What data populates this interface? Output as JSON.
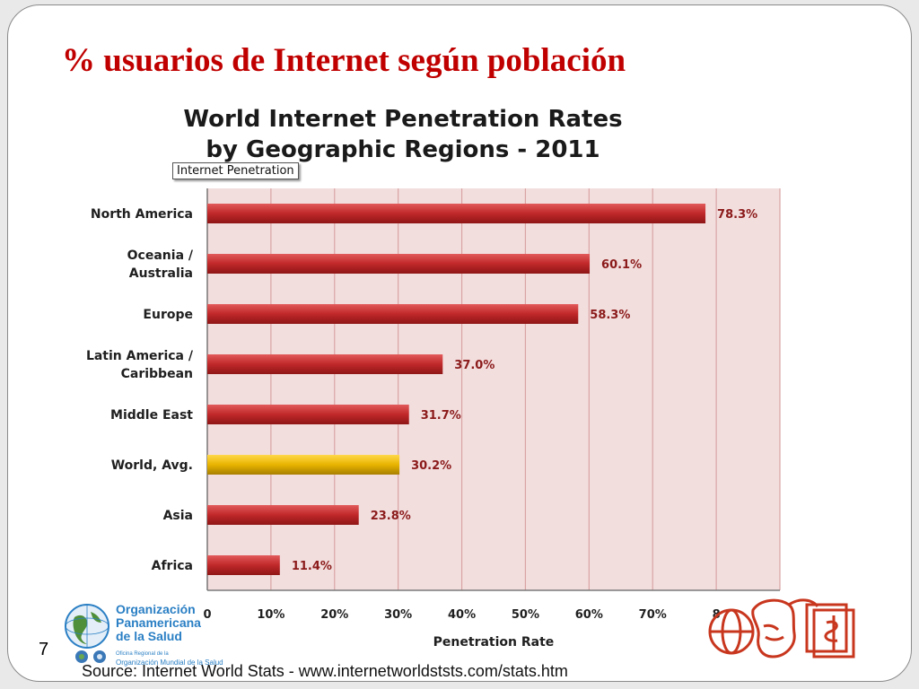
{
  "slide": {
    "title": "% usuarios de Internet según población",
    "page_number": "7",
    "source": "Source: Internet World Stats - www.internetworldststs.com/stats.htm"
  },
  "tooltip": "Internet Penetration",
  "logo": {
    "name_lines": [
      "Organización",
      "Panamericana",
      "de la Salud"
    ],
    "sub_small": "Oficina Regional de la",
    "sub_big": "Organización Mundial de la Salud"
  },
  "chart_data": {
    "type": "bar",
    "orientation": "horizontal",
    "title": "World Internet Penetration Rates by Geographic Regions - 2011",
    "title_lines": [
      "World Internet Penetration Rates",
      "by Geographic Regions - 2011"
    ],
    "xlabel": "Penetration Rate",
    "ylabel": "",
    "xlim": [
      0,
      90
    ],
    "x_ticks": [
      "0",
      "10%",
      "20%",
      "30%",
      "40%",
      "50%",
      "60%",
      "70%",
      "8"
    ],
    "categories": [
      [
        "North America"
      ],
      [
        "Oceania  /",
        "Australia"
      ],
      [
        "Europe"
      ],
      [
        "Latin America /",
        "Caribbean"
      ],
      [
        "Middle East"
      ],
      [
        "World, Avg."
      ],
      [
        "Asia"
      ],
      [
        "Africa"
      ]
    ],
    "values": [
      78.3,
      60.1,
      58.3,
      37.0,
      31.7,
      30.2,
      23.8,
      11.4
    ],
    "value_labels": [
      "78.3%",
      "60.1%",
      "58.3%",
      "37.0%",
      "31.7%",
      "30.2%",
      "23.8%",
      "11.4%"
    ],
    "highlight_index": 5,
    "colors": {
      "bar": "#c0282a",
      "bar_highlight": "#e8b400",
      "plot_background": "#f3dede",
      "grid": "#d9a3a3",
      "value_label": "#8b1a1a"
    },
    "grid": true
  }
}
